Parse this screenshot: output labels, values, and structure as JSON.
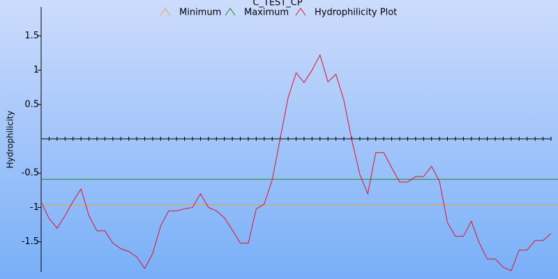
{
  "chart_data": {
    "type": "line",
    "title": "C_TEST_CP",
    "y_label": "Hydrophilicity",
    "ylim": [
      -1.94,
      1.92
    ],
    "yticks": [
      -1.5,
      -1,
      -0.5,
      0.5,
      1,
      1.5
    ],
    "reference_lines": [
      {
        "name": "Minimum",
        "color": "#e8a33a",
        "value": -0.96
      },
      {
        "name": "Maximum",
        "color": "#1a8a1a",
        "value": -0.59
      }
    ],
    "series": [
      {
        "name": "Hydrophilicity Plot",
        "color": "#e0102a",
        "values": [
          -0.92,
          -1.16,
          -1.3,
          -1.12,
          -0.91,
          -0.73,
          -1.12,
          -1.34,
          -1.34,
          -1.52,
          -1.6,
          -1.64,
          -1.72,
          -1.89,
          -1.67,
          -1.27,
          -1.05,
          -1.05,
          -1.02,
          -1.0,
          -0.8,
          -1.0,
          -1.05,
          -1.15,
          -1.33,
          -1.52,
          -1.52,
          -1.02,
          -0.95,
          -0.6,
          0.0,
          0.6,
          0.96,
          0.82,
          1.0,
          1.22,
          0.83,
          0.94,
          0.56,
          -0.02,
          -0.52,
          -0.8,
          -0.2,
          -0.2,
          -0.42,
          -0.63,
          -0.63,
          -0.55,
          -0.55,
          -0.4,
          -0.62,
          -1.22,
          -1.42,
          -1.42,
          -1.2,
          -1.52,
          -1.75,
          -1.75,
          -1.87,
          -1.92,
          -1.62,
          -1.62,
          -1.48,
          -1.48,
          -1.38
        ]
      }
    ]
  }
}
